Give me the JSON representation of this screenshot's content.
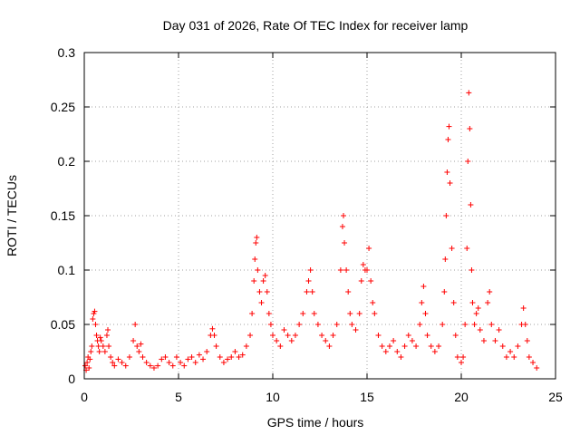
{
  "chart_data": {
    "type": "scatter",
    "title": "Day 031 of 2026, Rate Of TEC Index for receiver lamp",
    "xlabel": "GPS time / hours",
    "ylabel": "ROTI / TECUs",
    "xlim": [
      0,
      25
    ],
    "ylim": [
      0,
      0.3
    ],
    "xticks": [
      0,
      5,
      10,
      15,
      20,
      25
    ],
    "yticks": [
      0,
      0.05,
      0.1,
      0.15,
      0.2,
      0.25,
      0.3
    ],
    "xtick_labels": [
      "0",
      "5",
      "10",
      "15",
      "20",
      "25"
    ],
    "ytick_labels": [
      "0",
      "0.05",
      "0.1",
      "0.15",
      "0.2",
      "0.25",
      "0.3"
    ],
    "grid": true,
    "marker": "plus",
    "color": "#ff0000",
    "series": [
      {
        "name": "ROTI",
        "points": [
          [
            0.05,
            0.012
          ],
          [
            0.1,
            0.008
          ],
          [
            0.15,
            0.015
          ],
          [
            0.2,
            0.02
          ],
          [
            0.25,
            0.01
          ],
          [
            0.3,
            0.018
          ],
          [
            0.35,
            0.025
          ],
          [
            0.4,
            0.03
          ],
          [
            0.45,
            0.055
          ],
          [
            0.5,
            0.06
          ],
          [
            0.55,
            0.062
          ],
          [
            0.6,
            0.05
          ],
          [
            0.65,
            0.04
          ],
          [
            0.7,
            0.035
          ],
          [
            0.75,
            0.03
          ],
          [
            0.8,
            0.025
          ],
          [
            0.85,
            0.038
          ],
          [
            0.9,
            0.035
          ],
          [
            1.0,
            0.03
          ],
          [
            1.1,
            0.025
          ],
          [
            1.2,
            0.04
          ],
          [
            1.25,
            0.045
          ],
          [
            1.3,
            0.03
          ],
          [
            1.4,
            0.02
          ],
          [
            1.5,
            0.015
          ],
          [
            1.6,
            0.012
          ],
          [
            1.8,
            0.018
          ],
          [
            2.0,
            0.015
          ],
          [
            2.2,
            0.012
          ],
          [
            2.4,
            0.02
          ],
          [
            2.6,
            0.035
          ],
          [
            2.7,
            0.05
          ],
          [
            2.8,
            0.03
          ],
          [
            2.9,
            0.025
          ],
          [
            3.0,
            0.032
          ],
          [
            3.1,
            0.02
          ],
          [
            3.3,
            0.015
          ],
          [
            3.5,
            0.012
          ],
          [
            3.7,
            0.01
          ],
          [
            3.9,
            0.012
          ],
          [
            4.1,
            0.018
          ],
          [
            4.3,
            0.02
          ],
          [
            4.5,
            0.015
          ],
          [
            4.7,
            0.012
          ],
          [
            4.9,
            0.02
          ],
          [
            5.1,
            0.015
          ],
          [
            5.3,
            0.012
          ],
          [
            5.5,
            0.018
          ],
          [
            5.7,
            0.02
          ],
          [
            5.9,
            0.015
          ],
          [
            6.1,
            0.022
          ],
          [
            6.3,
            0.018
          ],
          [
            6.5,
            0.025
          ],
          [
            6.7,
            0.04
          ],
          [
            6.8,
            0.046
          ],
          [
            6.9,
            0.04
          ],
          [
            7.0,
            0.03
          ],
          [
            7.2,
            0.02
          ],
          [
            7.4,
            0.015
          ],
          [
            7.6,
            0.018
          ],
          [
            7.8,
            0.02
          ],
          [
            8.0,
            0.025
          ],
          [
            8.2,
            0.02
          ],
          [
            8.4,
            0.022
          ],
          [
            8.6,
            0.03
          ],
          [
            8.8,
            0.04
          ],
          [
            8.9,
            0.06
          ],
          [
            9.0,
            0.09
          ],
          [
            9.05,
            0.11
          ],
          [
            9.1,
            0.125
          ],
          [
            9.15,
            0.13
          ],
          [
            9.2,
            0.1
          ],
          [
            9.3,
            0.08
          ],
          [
            9.4,
            0.07
          ],
          [
            9.5,
            0.09
          ],
          [
            9.6,
            0.095
          ],
          [
            9.7,
            0.08
          ],
          [
            9.8,
            0.06
          ],
          [
            9.9,
            0.05
          ],
          [
            10.0,
            0.04
          ],
          [
            10.2,
            0.035
          ],
          [
            10.4,
            0.03
          ],
          [
            10.6,
            0.045
          ],
          [
            10.8,
            0.04
          ],
          [
            11.0,
            0.035
          ],
          [
            11.2,
            0.04
          ],
          [
            11.4,
            0.05
          ],
          [
            11.6,
            0.06
          ],
          [
            11.8,
            0.08
          ],
          [
            11.9,
            0.09
          ],
          [
            12.0,
            0.1
          ],
          [
            12.1,
            0.08
          ],
          [
            12.2,
            0.06
          ],
          [
            12.4,
            0.05
          ],
          [
            12.6,
            0.04
          ],
          [
            12.8,
            0.035
          ],
          [
            13.0,
            0.03
          ],
          [
            13.2,
            0.04
          ],
          [
            13.4,
            0.05
          ],
          [
            13.6,
            0.1
          ],
          [
            13.7,
            0.14
          ],
          [
            13.75,
            0.15
          ],
          [
            13.8,
            0.125
          ],
          [
            13.9,
            0.1
          ],
          [
            14.0,
            0.08
          ],
          [
            14.1,
            0.06
          ],
          [
            14.2,
            0.05
          ],
          [
            14.4,
            0.045
          ],
          [
            14.6,
            0.06
          ],
          [
            14.7,
            0.09
          ],
          [
            14.8,
            0.105
          ],
          [
            14.9,
            0.1
          ],
          [
            15.0,
            0.1
          ],
          [
            15.1,
            0.12
          ],
          [
            15.2,
            0.09
          ],
          [
            15.3,
            0.07
          ],
          [
            15.4,
            0.06
          ],
          [
            15.6,
            0.04
          ],
          [
            15.8,
            0.03
          ],
          [
            16.0,
            0.025
          ],
          [
            16.2,
            0.03
          ],
          [
            16.4,
            0.035
          ],
          [
            16.6,
            0.025
          ],
          [
            16.8,
            0.02
          ],
          [
            17.0,
            0.03
          ],
          [
            17.2,
            0.04
          ],
          [
            17.4,
            0.035
          ],
          [
            17.6,
            0.03
          ],
          [
            17.8,
            0.05
          ],
          [
            17.9,
            0.07
          ],
          [
            18.0,
            0.085
          ],
          [
            18.1,
            0.06
          ],
          [
            18.2,
            0.04
          ],
          [
            18.4,
            0.03
          ],
          [
            18.6,
            0.025
          ],
          [
            18.8,
            0.03
          ],
          [
            19.0,
            0.05
          ],
          [
            19.1,
            0.08
          ],
          [
            19.15,
            0.11
          ],
          [
            19.2,
            0.15
          ],
          [
            19.25,
            0.19
          ],
          [
            19.3,
            0.22
          ],
          [
            19.35,
            0.232
          ],
          [
            19.4,
            0.18
          ],
          [
            19.5,
            0.12
          ],
          [
            19.6,
            0.07
          ],
          [
            19.7,
            0.04
          ],
          [
            19.8,
            0.02
          ],
          [
            20.0,
            0.015
          ],
          [
            20.1,
            0.02
          ],
          [
            20.2,
            0.05
          ],
          [
            20.3,
            0.12
          ],
          [
            20.35,
            0.2
          ],
          [
            20.4,
            0.263
          ],
          [
            20.45,
            0.23
          ],
          [
            20.5,
            0.16
          ],
          [
            20.55,
            0.1
          ],
          [
            20.6,
            0.07
          ],
          [
            20.7,
            0.05
          ],
          [
            20.8,
            0.06
          ],
          [
            20.9,
            0.065
          ],
          [
            21.0,
            0.045
          ],
          [
            21.2,
            0.035
          ],
          [
            21.4,
            0.07
          ],
          [
            21.5,
            0.08
          ],
          [
            21.6,
            0.05
          ],
          [
            21.8,
            0.035
          ],
          [
            22.0,
            0.045
          ],
          [
            22.2,
            0.03
          ],
          [
            22.4,
            0.02
          ],
          [
            22.6,
            0.025
          ],
          [
            22.8,
            0.02
          ],
          [
            23.0,
            0.03
          ],
          [
            23.2,
            0.05
          ],
          [
            23.3,
            0.065
          ],
          [
            23.4,
            0.05
          ],
          [
            23.5,
            0.035
          ],
          [
            23.6,
            0.02
          ],
          [
            23.8,
            0.015
          ],
          [
            24.0,
            0.01
          ]
        ]
      }
    ]
  }
}
